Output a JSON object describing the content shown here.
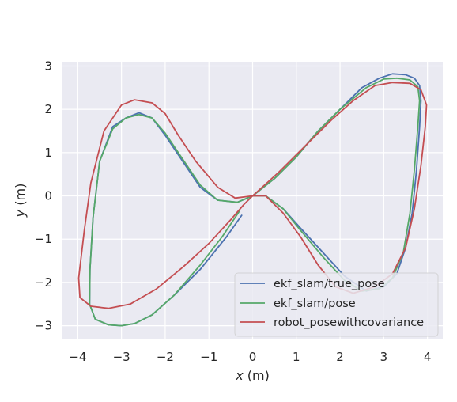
{
  "chart_data": {
    "type": "line",
    "title": "",
    "xlabel": {
      "var": "x",
      "unit": " (m)"
    },
    "ylabel": {
      "var": "y",
      "unit": " (m)"
    },
    "xlim": [
      -4.35,
      4.35
    ],
    "ylim": [
      -3.3,
      3.1
    ],
    "xticks": [
      -4,
      -3,
      -2,
      -1,
      0,
      1,
      2,
      3,
      4
    ],
    "xtick_labels": [
      "−4",
      "−3",
      "−2",
      "−1",
      "0",
      "1",
      "2",
      "3",
      "4"
    ],
    "yticks": [
      3,
      2,
      1,
      0,
      -1,
      -2,
      -3
    ],
    "ytick_labels": [
      "3",
      "2",
      "1",
      "0",
      "−1",
      "−2",
      "−3"
    ],
    "grid": true,
    "background": "#eaeaf2",
    "legend_position": "lower-right",
    "series": [
      {
        "name": "ekf_slam/true_pose",
        "color": "#4c72b0",
        "points": [
          [
            0.0,
            0.0
          ],
          [
            0.3,
            0.0
          ],
          [
            0.7,
            -0.3
          ],
          [
            1.1,
            -0.75
          ],
          [
            1.6,
            -1.3
          ],
          [
            2.1,
            -1.85
          ],
          [
            2.6,
            -2.2
          ],
          [
            3.0,
            -2.1
          ],
          [
            3.3,
            -1.8
          ],
          [
            3.5,
            -1.2
          ],
          [
            3.65,
            -0.4
          ],
          [
            3.75,
            0.6
          ],
          [
            3.82,
            1.6
          ],
          [
            3.85,
            2.2
          ],
          [
            3.82,
            2.55
          ],
          [
            3.7,
            2.72
          ],
          [
            3.5,
            2.8
          ],
          [
            3.2,
            2.82
          ],
          [
            2.9,
            2.72
          ],
          [
            2.5,
            2.5
          ],
          [
            2.0,
            2.0
          ],
          [
            1.5,
            1.5
          ],
          [
            1.0,
            0.9
          ],
          [
            0.5,
            0.4
          ],
          [
            0.0,
            0.0
          ],
          [
            -0.35,
            -0.15
          ],
          [
            -0.8,
            -0.1
          ],
          [
            -1.2,
            0.2
          ],
          [
            -1.6,
            0.8
          ],
          [
            -2.0,
            1.4
          ],
          [
            -2.3,
            1.8
          ],
          [
            -2.6,
            1.92
          ],
          [
            -2.9,
            1.8
          ],
          [
            -3.2,
            1.6
          ],
          [
            -3.5,
            0.8
          ],
          [
            -3.65,
            -0.5
          ],
          [
            -3.72,
            -1.7
          ],
          [
            -3.73,
            -2.5
          ],
          [
            -3.6,
            -2.85
          ],
          [
            -3.3,
            -2.98
          ],
          [
            -3.0,
            -3.0
          ],
          [
            -2.7,
            -2.95
          ],
          [
            -2.3,
            -2.75
          ],
          [
            -1.8,
            -2.3
          ],
          [
            -1.2,
            -1.7
          ],
          [
            -0.6,
            -0.95
          ],
          [
            -0.25,
            -0.45
          ]
        ]
      },
      {
        "name": "ekf_slam/pose",
        "color": "#55a868",
        "points": [
          [
            0.0,
            0.0
          ],
          [
            0.3,
            0.0
          ],
          [
            0.7,
            -0.3
          ],
          [
            1.1,
            -0.8
          ],
          [
            1.6,
            -1.4
          ],
          [
            2.1,
            -1.95
          ],
          [
            2.5,
            -2.2
          ],
          [
            2.9,
            -2.15
          ],
          [
            3.2,
            -1.9
          ],
          [
            3.45,
            -1.3
          ],
          [
            3.6,
            -0.4
          ],
          [
            3.7,
            0.6
          ],
          [
            3.78,
            1.6
          ],
          [
            3.82,
            2.2
          ],
          [
            3.78,
            2.52
          ],
          [
            3.6,
            2.68
          ],
          [
            3.3,
            2.72
          ],
          [
            3.0,
            2.7
          ],
          [
            2.6,
            2.5
          ],
          [
            2.0,
            2.0
          ],
          [
            1.5,
            1.5
          ],
          [
            1.0,
            0.9
          ],
          [
            0.5,
            0.4
          ],
          [
            0.0,
            0.0
          ],
          [
            -0.35,
            -0.15
          ],
          [
            -0.8,
            -0.1
          ],
          [
            -1.2,
            0.25
          ],
          [
            -1.6,
            0.85
          ],
          [
            -2.0,
            1.45
          ],
          [
            -2.3,
            1.8
          ],
          [
            -2.6,
            1.88
          ],
          [
            -2.9,
            1.8
          ],
          [
            -3.2,
            1.55
          ],
          [
            -3.5,
            0.8
          ],
          [
            -3.65,
            -0.5
          ],
          [
            -3.72,
            -1.7
          ],
          [
            -3.73,
            -2.5
          ],
          [
            -3.6,
            -2.85
          ],
          [
            -3.3,
            -2.98
          ],
          [
            -3.0,
            -3.0
          ],
          [
            -2.7,
            -2.95
          ],
          [
            -2.3,
            -2.75
          ],
          [
            -1.8,
            -2.3
          ],
          [
            -1.2,
            -1.6
          ],
          [
            -0.7,
            -0.95
          ],
          [
            -0.3,
            -0.35
          ]
        ]
      },
      {
        "name": "robot_posewithcovariance",
        "color": "#c44e52",
        "points": [
          [
            0.0,
            0.0
          ],
          [
            0.3,
            0.0
          ],
          [
            0.7,
            -0.4
          ],
          [
            1.1,
            -0.95
          ],
          [
            1.5,
            -1.6
          ],
          [
            1.9,
            -2.1
          ],
          [
            2.3,
            -2.25
          ],
          [
            2.8,
            -2.1
          ],
          [
            3.2,
            -1.8
          ],
          [
            3.5,
            -1.2
          ],
          [
            3.7,
            -0.3
          ],
          [
            3.85,
            0.7
          ],
          [
            3.95,
            1.6
          ],
          [
            3.98,
            2.1
          ],
          [
            3.85,
            2.45
          ],
          [
            3.6,
            2.6
          ],
          [
            3.2,
            2.62
          ],
          [
            2.8,
            2.55
          ],
          [
            2.3,
            2.2
          ],
          [
            1.8,
            1.75
          ],
          [
            1.2,
            1.15
          ],
          [
            0.6,
            0.55
          ],
          [
            0.0,
            0.0
          ],
          [
            -0.4,
            -0.05
          ],
          [
            -0.8,
            0.2
          ],
          [
            -1.3,
            0.8
          ],
          [
            -1.7,
            1.4
          ],
          [
            -2.0,
            1.9
          ],
          [
            -2.3,
            2.15
          ],
          [
            -2.7,
            2.22
          ],
          [
            -3.0,
            2.1
          ],
          [
            -3.4,
            1.5
          ],
          [
            -3.7,
            0.3
          ],
          [
            -3.85,
            -0.8
          ],
          [
            -3.98,
            -1.9
          ],
          [
            -3.95,
            -2.35
          ],
          [
            -3.7,
            -2.55
          ],
          [
            -3.3,
            -2.6
          ],
          [
            -2.8,
            -2.5
          ],
          [
            -2.2,
            -2.15
          ],
          [
            -1.6,
            -1.65
          ],
          [
            -1.0,
            -1.1
          ],
          [
            -0.5,
            -0.55
          ],
          [
            -0.2,
            -0.2
          ],
          [
            0.0,
            0.0
          ]
        ]
      }
    ]
  }
}
